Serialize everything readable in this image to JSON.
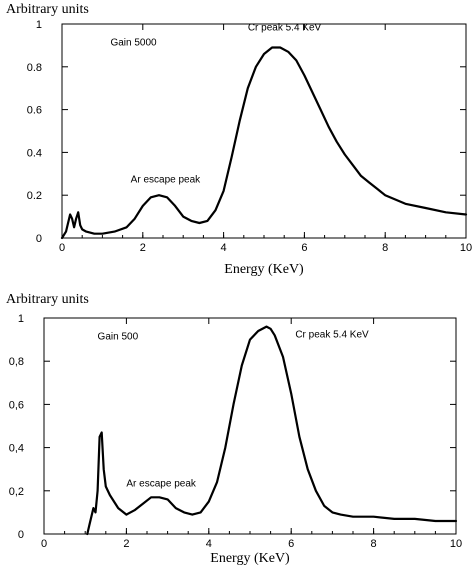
{
  "chart_data": [
    {
      "type": "line",
      "xlabel": "Energy (KeV)",
      "ylabel": "Arbitrary units",
      "xlim": [
        0,
        10
      ],
      "ylim": [
        0,
        1
      ],
      "xticks": [
        "0",
        "2",
        "4",
        "6",
        "8",
        "10"
      ],
      "yticks": [
        "0",
        "0.2",
        "0.4",
        "0.6",
        "0.8",
        "1"
      ],
      "annotations": [
        {
          "text": "Gain 5000",
          "x": 1.2,
          "y": 0.9
        },
        {
          "text": "Cr peak 5.4 KeV",
          "x": 4.6,
          "y": 0.97
        },
        {
          "text": "Ar escape peak",
          "x": 1.7,
          "y": 0.26
        }
      ],
      "series": [
        {
          "x": [
            0.0,
            0.1,
            0.2,
            0.25,
            0.3,
            0.35,
            0.4,
            0.45,
            0.5,
            0.6,
            0.8,
            1.0,
            1.3,
            1.6,
            1.8,
            2.0,
            2.2,
            2.4,
            2.6,
            2.8,
            3.0,
            3.2,
            3.4,
            3.6,
            3.8,
            4.0,
            4.2,
            4.4,
            4.6,
            4.8,
            5.0,
            5.2,
            5.4,
            5.6,
            5.8,
            6.0,
            6.2,
            6.4,
            6.6,
            6.8,
            7.0,
            7.2,
            7.4,
            7.6,
            7.8,
            8.0,
            8.5,
            9.0,
            9.5,
            10.0
          ],
          "y": [
            0.0,
            0.03,
            0.11,
            0.09,
            0.05,
            0.09,
            0.12,
            0.06,
            0.04,
            0.03,
            0.02,
            0.02,
            0.03,
            0.05,
            0.09,
            0.15,
            0.19,
            0.2,
            0.19,
            0.15,
            0.1,
            0.08,
            0.07,
            0.08,
            0.13,
            0.22,
            0.38,
            0.55,
            0.7,
            0.8,
            0.86,
            0.89,
            0.89,
            0.87,
            0.83,
            0.76,
            0.68,
            0.6,
            0.52,
            0.45,
            0.39,
            0.34,
            0.29,
            0.26,
            0.23,
            0.2,
            0.16,
            0.14,
            0.12,
            0.11
          ]
        }
      ]
    },
    {
      "type": "line",
      "xlabel": "Energy (KeV)",
      "ylabel": "Arbitrary units",
      "xlim": [
        0,
        10
      ],
      "ylim": [
        0,
        1
      ],
      "xticks": [
        "0",
        "2",
        "4",
        "6",
        "8",
        "10"
      ],
      "yticks": [
        "0",
        "0,2",
        "0,4",
        "0,6",
        "0,8",
        "1"
      ],
      "annotations": [
        {
          "text": "Gain 500",
          "x": 1.3,
          "y": 0.9
        },
        {
          "text": "Cr peak 5.4 KeV",
          "x": 6.1,
          "y": 0.91
        },
        {
          "text": "Ar escape peak",
          "x": 2.0,
          "y": 0.22
        }
      ],
      "series": [
        {
          "x": [
            1.05,
            1.1,
            1.2,
            1.25,
            1.3,
            1.35,
            1.4,
            1.45,
            1.5,
            1.6,
            1.8,
            2.0,
            2.2,
            2.4,
            2.6,
            2.8,
            3.0,
            3.2,
            3.4,
            3.6,
            3.8,
            4.0,
            4.2,
            4.4,
            4.6,
            4.8,
            5.0,
            5.2,
            5.4,
            5.5,
            5.6,
            5.8,
            6.0,
            6.2,
            6.4,
            6.6,
            6.8,
            7.0,
            7.2,
            7.5,
            8.0,
            8.5,
            9.0,
            9.5,
            10.0
          ],
          "y": [
            0.0,
            0.04,
            0.12,
            0.1,
            0.2,
            0.45,
            0.47,
            0.3,
            0.22,
            0.18,
            0.12,
            0.09,
            0.11,
            0.14,
            0.17,
            0.17,
            0.16,
            0.12,
            0.1,
            0.09,
            0.1,
            0.15,
            0.24,
            0.4,
            0.6,
            0.78,
            0.9,
            0.94,
            0.96,
            0.95,
            0.92,
            0.82,
            0.65,
            0.45,
            0.3,
            0.2,
            0.13,
            0.1,
            0.09,
            0.08,
            0.08,
            0.07,
            0.07,
            0.06,
            0.06
          ]
        }
      ]
    }
  ]
}
